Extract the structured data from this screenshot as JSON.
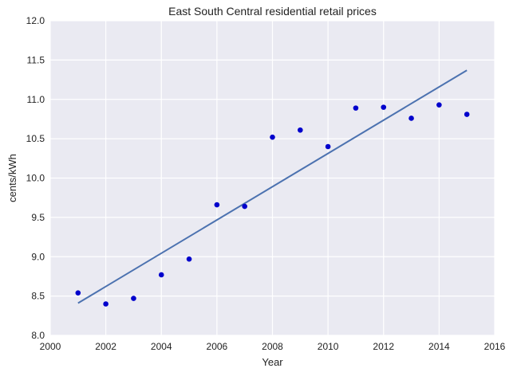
{
  "chart_data": {
    "type": "scatter",
    "title": "East South Central   residential retail prices",
    "xlabel": "Year",
    "ylabel": "cents/kWh",
    "xlim": [
      2000,
      2016
    ],
    "ylim": [
      8.0,
      12.0
    ],
    "xticks": [
      2000,
      2002,
      2004,
      2006,
      2008,
      2010,
      2012,
      2014,
      2016
    ],
    "yticks": [
      8.0,
      8.5,
      9.0,
      9.5,
      10.0,
      10.5,
      11.0,
      11.5,
      12.0
    ],
    "xtick_labels": [
      "2000",
      "2002",
      "2004",
      "2006",
      "2008",
      "2010",
      "2012",
      "2014",
      "2016"
    ],
    "ytick_labels": [
      "8.0",
      "8.5",
      "9.0",
      "9.5",
      "10.0",
      "10.5",
      "11.0",
      "11.5",
      "12.0"
    ],
    "grid": true,
    "legend": "none",
    "colors": {
      "plot_background": "#EAEAF2",
      "grid": "#FFFFFF",
      "points": "#0000CC",
      "fit_line": "#4C72B0"
    },
    "series": [
      {
        "type": "scatter",
        "x": [
          2001,
          2002,
          2003,
          2004,
          2005,
          2006,
          2007,
          2008,
          2009,
          2010,
          2011,
          2012,
          2013,
          2014,
          2015
        ],
        "y": [
          8.54,
          8.4,
          8.47,
          8.77,
          8.97,
          9.66,
          9.64,
          10.52,
          10.61,
          10.4,
          10.89,
          10.9,
          10.76,
          10.93,
          10.81
        ]
      },
      {
        "type": "line",
        "x": [
          2001,
          2015
        ],
        "y": [
          8.41,
          11.37
        ]
      }
    ]
  }
}
